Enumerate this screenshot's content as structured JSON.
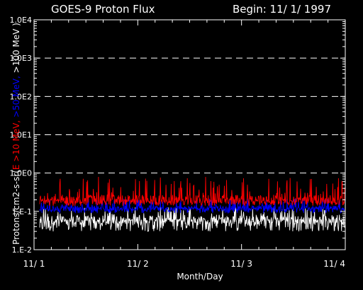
{
  "header": {
    "title": "GOES-9  Proton Flux",
    "begin": "Begin: 11/ 1/ 1997"
  },
  "chart_data": {
    "type": "line",
    "title": "GOES-9  Proton Flux",
    "xlabel": "Month/Day",
    "ylabel_parts": [
      {
        "text": "Protons/cm2-s-sr(",
        "color": "#ffffff"
      },
      {
        "text": "E >10 MeV, ",
        "color": "#ff0000"
      },
      {
        "text": ">50 MeV, ",
        "color": "#0000ff"
      },
      {
        "text": ">100 MeV )",
        "color": "#ffffff"
      }
    ],
    "yscale": "log",
    "ylim": [
      0.01,
      10000
    ],
    "yticks": [
      "1.E-2",
      "1.E-1",
      "1.0E0",
      "1.0E1",
      "1.0E2",
      "1.0E3",
      "1.0E4"
    ],
    "ytick_values": [
      0.01,
      0.1,
      1,
      10,
      100,
      1000,
      10000
    ],
    "xlim": [
      "11/1",
      "11/4"
    ],
    "xticks": [
      "11/ 1",
      "11/ 2",
      "11/ 3",
      "11/ 4"
    ],
    "grid": "dashed horizontal at decades",
    "series": [
      {
        "name": "E >10 MeV",
        "color": "#ff0000",
        "typical": 0.2,
        "range": [
          0.14,
          0.8
        ]
      },
      {
        "name": ">50 MeV",
        "color": "#0000ff",
        "typical": 0.12,
        "range": [
          0.09,
          0.22
        ]
      },
      {
        "name": ">100 MeV",
        "color": "#ffffff",
        "typical": 0.06,
        "range": [
          0.03,
          0.13
        ]
      }
    ]
  }
}
